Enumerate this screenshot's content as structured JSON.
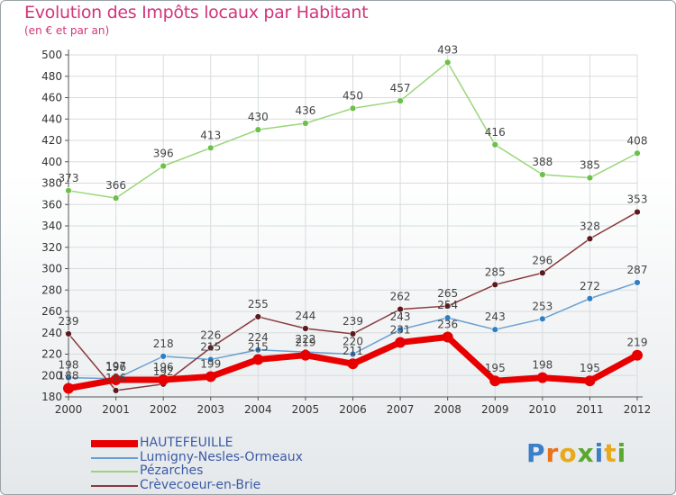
{
  "title": "Evolution des Impôts locaux par Habitant",
  "subtitle": "(en € et par an)",
  "logo_text": "Proxiti",
  "colors": {
    "title": "#d0367a",
    "legend_text": "#3c5aa6",
    "grid": "#d8dcde",
    "axis": "#555555"
  },
  "chart_data": {
    "type": "line",
    "title": "Evolution des Impôts locaux par Habitant",
    "subtitle": "(en € et par an)",
    "x": [
      "2000",
      "2001",
      "2002",
      "2003",
      "2004",
      "2005",
      "2006",
      "2007",
      "2008",
      "2009",
      "2010",
      "2011",
      "2012"
    ],
    "ylim": [
      180,
      500
    ],
    "yticks": [
      180,
      200,
      220,
      240,
      260,
      280,
      300,
      320,
      340,
      360,
      380,
      400,
      420,
      440,
      460,
      480,
      500
    ],
    "grid": true,
    "legend_position": "bottom-left",
    "series": [
      {
        "name": "HAUTEFEUILLE",
        "color": "#e80000",
        "marker_color": "#e80000",
        "style": "thick",
        "values": [
          188,
          196,
          196,
          199,
          215,
          219,
          211,
          231,
          236,
          195,
          198,
          195,
          219
        ],
        "labels": [
          "188",
          "196",
          "196",
          "199",
          "215",
          "219",
          "211",
          "231",
          "236",
          "195",
          "198",
          "195",
          "219"
        ]
      },
      {
        "name": "Lumigny-Nesles-Ormeaux",
        "color": "#6a9fd1",
        "marker_color": "#2f7fc3",
        "style": "thin",
        "values": [
          198,
          197,
          218,
          215,
          224,
          222,
          220,
          243,
          254,
          243,
          253,
          272,
          287
        ],
        "labels": [
          "198",
          "197",
          "218",
          "215",
          "224",
          "222",
          "220",
          "243",
          "254",
          "243",
          "253",
          "272",
          "287"
        ]
      },
      {
        "name": "Pézarches",
        "color": "#99d67a",
        "marker_color": "#6cc04a",
        "style": "thin",
        "values": [
          373,
          366,
          396,
          413,
          430,
          436,
          450,
          457,
          493,
          416,
          388,
          385,
          408
        ],
        "labels": [
          "373",
          "366",
          "396",
          "413",
          "430",
          "436",
          "450",
          "457",
          "493",
          "416",
          "388",
          "385",
          "408"
        ]
      },
      {
        "name": "Crèvecoeur-en-Brie",
        "color": "#8a3a3e",
        "marker_color": "#5a1a1e",
        "style": "thin",
        "values": [
          239,
          186,
          192,
          226,
          255,
          244,
          239,
          262,
          265,
          285,
          296,
          328,
          353
        ],
        "labels": [
          "239",
          "186",
          "192",
          "226",
          "255",
          "244",
          "239",
          "262",
          "265",
          "285",
          "296",
          "328",
          "353"
        ]
      }
    ]
  }
}
